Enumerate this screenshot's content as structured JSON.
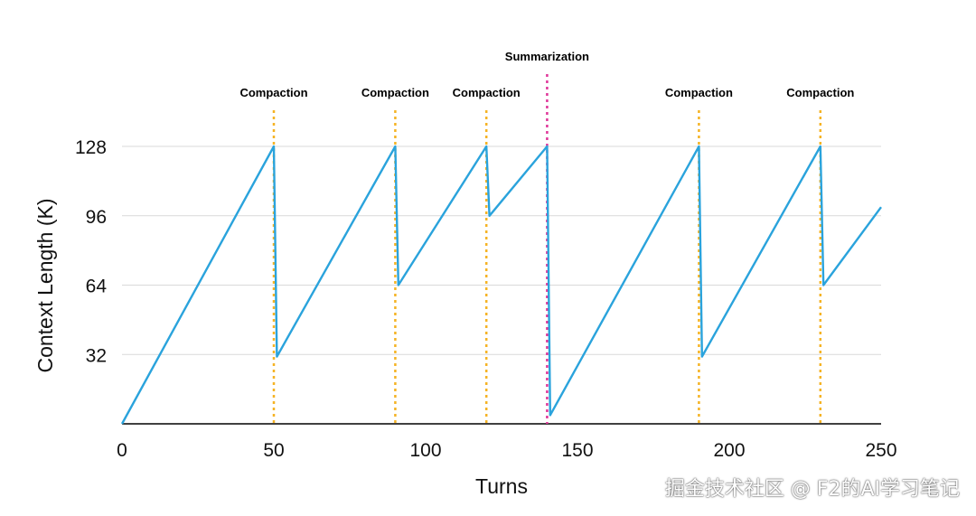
{
  "chart_data": {
    "type": "line",
    "xlabel": "Turns",
    "ylabel": "Context Length (K)",
    "x_ticks": [
      0,
      50,
      100,
      150,
      200,
      250
    ],
    "y_ticks": [
      32,
      64,
      96,
      128
    ],
    "xlim": [
      0,
      250
    ],
    "ylim": [
      0,
      128
    ],
    "grid": true,
    "series": [
      {
        "color": "#2aa3dc",
        "points": [
          [
            0,
            0
          ],
          [
            50,
            128
          ],
          [
            51,
            31
          ],
          [
            90,
            128
          ],
          [
            91,
            64
          ],
          [
            120,
            128
          ],
          [
            121,
            96
          ],
          [
            140,
            128
          ],
          [
            141,
            4
          ],
          [
            190,
            128
          ],
          [
            191,
            31
          ],
          [
            230,
            128
          ],
          [
            231,
            64
          ],
          [
            250,
            100
          ]
        ]
      }
    ],
    "annotations": [
      {
        "x": 50,
        "label": "Compaction",
        "kind": "compaction"
      },
      {
        "x": 90,
        "label": "Compaction",
        "kind": "compaction"
      },
      {
        "x": 120,
        "label": "Compaction",
        "kind": "compaction"
      },
      {
        "x": 140,
        "label": "Summarization",
        "kind": "summarization"
      },
      {
        "x": 190,
        "label": "Compaction",
        "kind": "compaction"
      },
      {
        "x": 230,
        "label": "Compaction",
        "kind": "compaction"
      }
    ],
    "colors": {
      "line": "#2aa3dc",
      "compaction": "#f5b324",
      "summarization": "#e0379a",
      "grid": "#d9d9d9",
      "axis": "#000000"
    }
  },
  "watermark": "掘金技术社区 @ F2的AI学习笔记"
}
